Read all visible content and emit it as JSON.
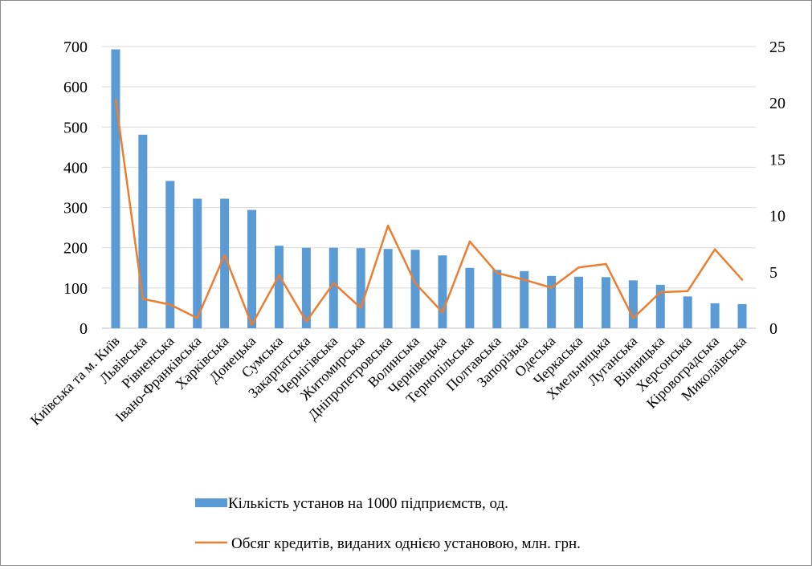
{
  "chart_data": {
    "type": "bar",
    "secondary_type": "line",
    "categories": [
      "Київська та м. Київ",
      "Львівська",
      "Рівненська",
      "Івано-Франківська",
      "Харківська",
      "Донецька",
      "Сумська",
      "Закарпатська",
      "Чернігівська",
      "Житомирська",
      "Дніпропетровська",
      "Волинська",
      "Чернівецька",
      "Тернопільська",
      "Полтавська",
      "Запорізька",
      "Одеська",
      "Черкаська",
      "Хмельницька",
      "Луганська",
      "Вінницька",
      "Херсонська",
      "Кіровоградська",
      "Миколаївська"
    ],
    "series": [
      {
        "name": "Кількість установ на 1000 підприємств, од.",
        "type": "bar",
        "axis": "left",
        "color": "#5B9BD5",
        "values": [
          693,
          481,
          366,
          322,
          322,
          294,
          205,
          200,
          200,
          199,
          197,
          195,
          181,
          150,
          145,
          142,
          130,
          128,
          127,
          119,
          108,
          79,
          62,
          60
        ]
      },
      {
        "name": "Обсяг кредитів, виданих однією установою, млн. грн.",
        "type": "line",
        "axis": "right",
        "color": "#ED7D31",
        "values": [
          20.3,
          2.6,
          2.1,
          0.9,
          6.5,
          0.3,
          4.7,
          0.6,
          4.0,
          1.8,
          9.1,
          4.0,
          1.4,
          7.7,
          4.9,
          4.3,
          3.6,
          5.4,
          5.7,
          0.9,
          3.2,
          3.3,
          7.0,
          4.3
        ]
      }
    ],
    "y_left": {
      "ylim": [
        0,
        700
      ],
      "ticks": [
        "0",
        "100",
        "200",
        "300",
        "400",
        "500",
        "600",
        "700"
      ]
    },
    "y_right": {
      "ylim": [
        0,
        25
      ],
      "ticks": [
        "0",
        "5",
        "10",
        "15",
        "20",
        "25"
      ]
    },
    "grid": true,
    "legend_position": "bottom",
    "title": "",
    "xlabel": "",
    "ylabel": ""
  }
}
